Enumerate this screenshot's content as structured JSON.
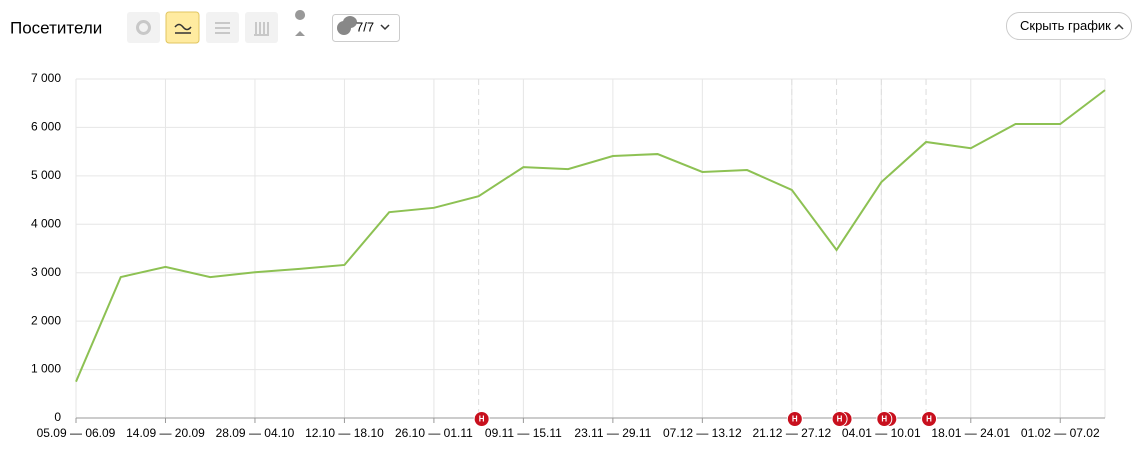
{
  "header": {
    "title": "Посетители",
    "comments_filter": "7/7",
    "hide_button": "Скрыть график"
  },
  "chart_data": {
    "type": "line",
    "categories": [
      "05.09 — 06.09",
      null,
      "14.09 — 20.09",
      null,
      "28.09 — 04.10",
      null,
      "12.10 — 18.10",
      null,
      "26.10 — 01.11",
      null,
      "09.11 — 15.11",
      null,
      "23.11 — 29.11",
      null,
      "07.12 — 13.12",
      null,
      "21.12 — 27.12",
      null,
      "04.01 — 10.01",
      null,
      "18.01 — 24.01",
      null,
      "01.02 — 07.02",
      null
    ],
    "series": [
      {
        "name": "Посетители",
        "color": "#8dc153",
        "values": [
          750,
          2910,
          3120,
          2910,
          3010,
          3080,
          3160,
          4250,
          4340,
          4580,
          5180,
          5140,
          5410,
          5450,
          5080,
          5120,
          4710,
          3470,
          4870,
          5700,
          5570,
          6070,
          6070,
          6770
        ]
      }
    ],
    "ylim": [
      0,
      7000
    ],
    "yticks": [
      0,
      {
        "value": 1000,
        "label": "1 000"
      },
      {
        "value": 2000,
        "label": "2 000"
      },
      {
        "value": 3000,
        "label": "3 000"
      },
      {
        "value": 4000,
        "label": "4 000"
      },
      {
        "value": 5000,
        "label": "5 000"
      },
      {
        "value": 6000,
        "label": "6 000"
      },
      {
        "value": 7000,
        "label": "7 000"
      }
    ],
    "grid": true,
    "annotation_label": "Н"
  }
}
